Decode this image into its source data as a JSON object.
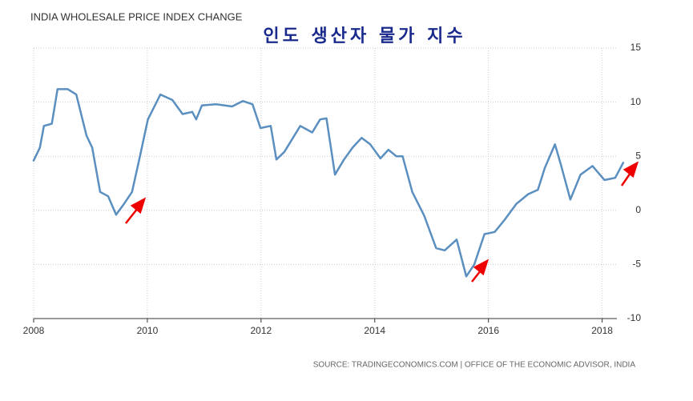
{
  "chart_data": {
    "type": "line",
    "title": "INDIA WHOLESALE PRICE INDEX CHANGE",
    "subtitle": "인도 생산자 물가 지수",
    "source": "SOURCE: TRADINGECONOMICS.COM | OFFICE OF THE ECONOMIC ADVISOR, INDIA",
    "x": [
      2008.0,
      2008.11,
      2008.18,
      2008.32,
      2008.42,
      2008.6,
      2008.75,
      2008.93,
      2009.03,
      2009.17,
      2009.31,
      2009.45,
      2009.59,
      2009.73,
      2009.87,
      2010.01,
      2010.23,
      2010.44,
      2010.62,
      2010.79,
      2010.86,
      2010.96,
      2011.21,
      2011.49,
      2011.68,
      2011.85,
      2011.99,
      2012.17,
      2012.27,
      2012.41,
      2012.69,
      2012.9,
      2013.04,
      2013.15,
      2013.3,
      2013.46,
      2013.61,
      2013.77,
      2013.92,
      2014.1,
      2014.24,
      2014.38,
      2014.49,
      2014.66,
      2014.87,
      2015.08,
      2015.23,
      2015.44,
      2015.61,
      2015.75,
      2015.93,
      2016.11,
      2016.28,
      2016.49,
      2016.7,
      2016.87,
      2016.99,
      2017.17,
      2017.27,
      2017.44,
      2017.62,
      2017.83,
      2018.04,
      2018.23,
      2018.37
    ],
    "series": [
      {
        "color": "#5a8fc0",
        "values": [
          4.6,
          5.8,
          7.8,
          8.0,
          11.2,
          11.2,
          10.7,
          6.9,
          5.8,
          1.7,
          1.3,
          -0.4,
          0.6,
          1.7,
          5.0,
          8.4,
          10.7,
          10.2,
          8.9,
          9.1,
          8.4,
          9.7,
          9.8,
          9.6,
          10.1,
          9.8,
          7.6,
          7.8,
          4.7,
          5.4,
          7.8,
          7.2,
          8.4,
          8.5,
          3.3,
          4.7,
          5.8,
          6.7,
          6.1,
          4.8,
          5.6,
          5.0,
          5.0,
          1.7,
          -0.5,
          -3.5,
          -3.7,
          -2.7,
          -6.1,
          -5.0,
          -2.2,
          -2.0,
          -0.9,
          0.6,
          1.5,
          1.9,
          3.9,
          6.1,
          4.3,
          1.0,
          3.3,
          4.1,
          2.8,
          3.0,
          4.4
        ]
      }
    ],
    "xlim": [
      2008,
      2018.4
    ],
    "xticks": [
      2008,
      2010,
      2012,
      2014,
      2016,
      2018
    ],
    "ylim": [
      -10,
      15
    ],
    "yticks": [
      -10,
      -5,
      0,
      5,
      10,
      15
    ],
    "grid": true
  }
}
